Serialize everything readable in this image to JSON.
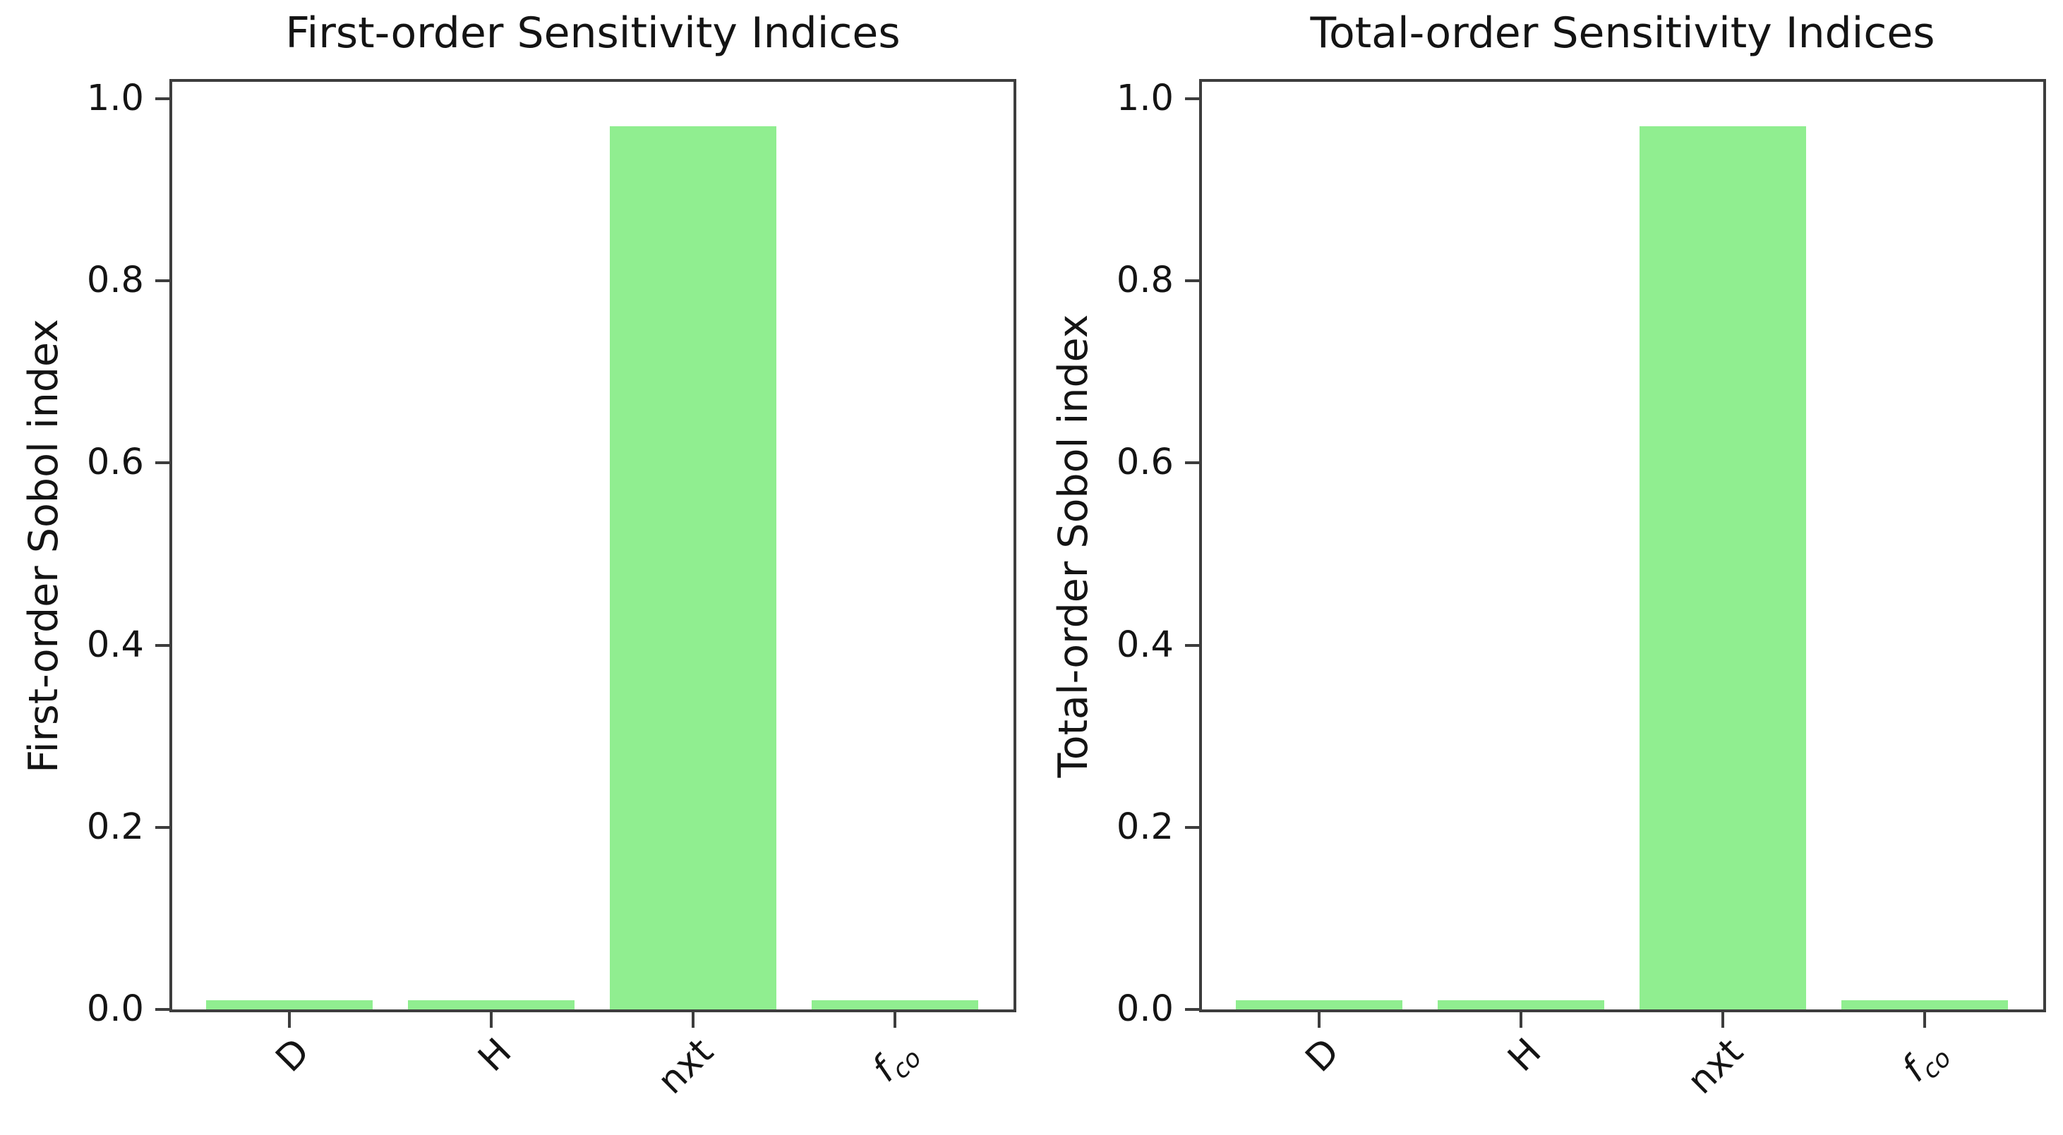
{
  "figure": {
    "background": "#ffffff",
    "axis_color": "#3d3d3d",
    "text_color": "#141414"
  },
  "chart_data": [
    {
      "type": "bar",
      "title": "First-order Sensitivity Indices",
      "ylabel": "First-order Sobol index",
      "xlabel": "",
      "categories": [
        "D",
        "H",
        "nxt",
        "f_co"
      ],
      "values": [
        0.01,
        0.01,
        0.97,
        0.01
      ],
      "bar_color": "#90EE90",
      "ylim": [
        0,
        1.0185
      ],
      "yticks": [
        0.0,
        0.2,
        0.4,
        0.6,
        0.8,
        1.0
      ],
      "ytick_labels": [
        "0.0",
        "0.2",
        "0.4",
        "0.6",
        "0.8",
        "1.0"
      ],
      "xtick_rotation_deg": 45,
      "grid": false,
      "legend": "none"
    },
    {
      "type": "bar",
      "title": "Total-order Sensitivity Indices",
      "ylabel": "Total-order Sobol index",
      "xlabel": "",
      "categories": [
        "D",
        "H",
        "nxt",
        "f_co"
      ],
      "values": [
        0.01,
        0.01,
        0.97,
        0.01
      ],
      "bar_color": "#90EE90",
      "ylim": [
        0,
        1.0185
      ],
      "yticks": [
        0.0,
        0.2,
        0.4,
        0.6,
        0.8,
        1.0
      ],
      "ytick_labels": [
        "0.0",
        "0.2",
        "0.4",
        "0.6",
        "0.8",
        "1.0"
      ],
      "xtick_rotation_deg": 45,
      "grid": false,
      "legend": "none"
    }
  ]
}
